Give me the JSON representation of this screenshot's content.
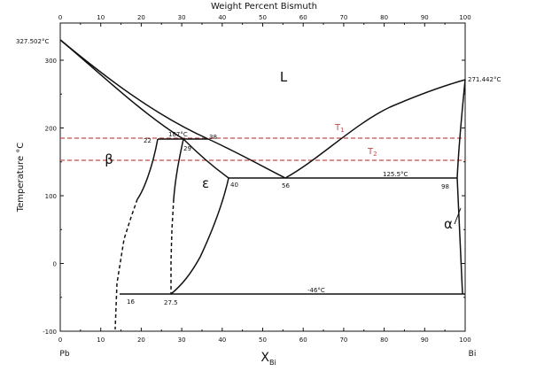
{
  "title": "Weight Percent Bismuth",
  "y_axis_label": "Temperature °C",
  "x_axis_label": "X",
  "x_axis_sub": "Bi",
  "left_end": "Pb",
  "right_end": "Bi",
  "top_ticks": [
    "0",
    "10",
    "20",
    "30",
    "40",
    "50",
    "60",
    "70",
    "80",
    "90",
    "100"
  ],
  "bottom_ticks": [
    "0",
    "10",
    "20",
    "30",
    "40",
    "50",
    "60",
    "70",
    "80",
    "90",
    "100"
  ],
  "y_ticks": [
    "300",
    "200",
    "100",
    "0",
    "-100"
  ],
  "phases": {
    "liquid": "L",
    "beta": "β",
    "epsilon": "ε",
    "alpha": "α"
  },
  "annotations": {
    "pb_melt": "327.502°C",
    "bi_melt": "271.442°C",
    "peritectic": "187°C",
    "eutectic": "125.5°C",
    "low": "-46°C",
    "t1": "T",
    "t1_sub": "1",
    "t2": "T",
    "t2_sub": "2",
    "c22": "22",
    "c29": "29",
    "c38": "38",
    "c40": "40",
    "c56": "56",
    "c98": "98",
    "c16": "16",
    "c275": "27.5"
  },
  "colors": {
    "line": "#111111",
    "isotherm": "#c0504d"
  }
}
